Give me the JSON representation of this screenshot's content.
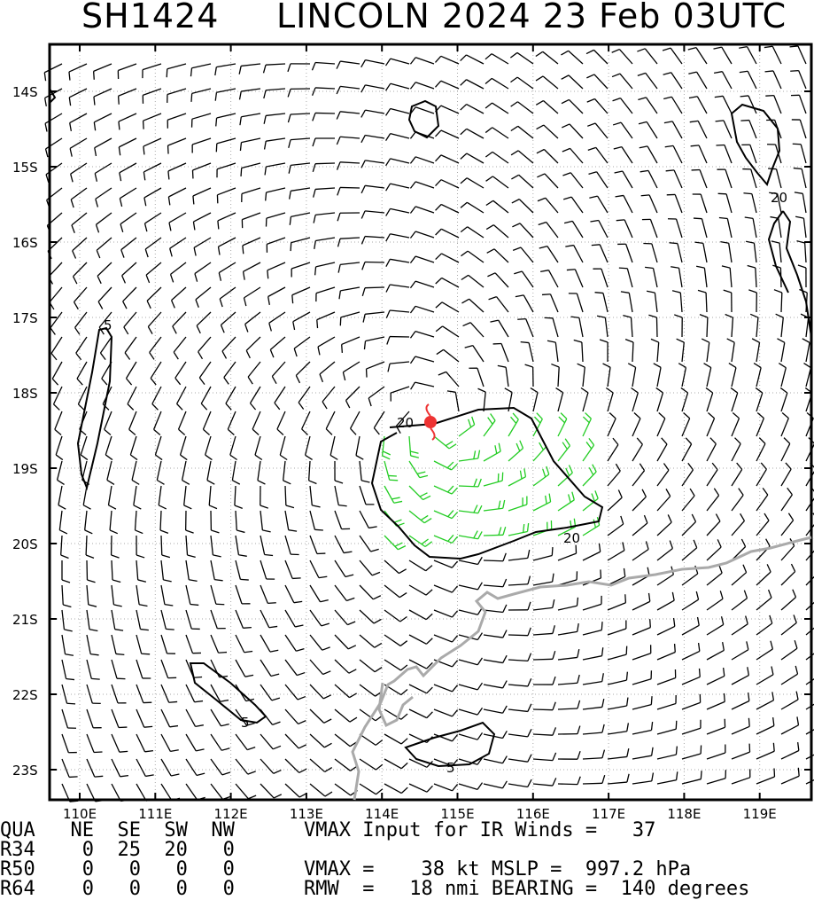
{
  "header": {
    "storm_id": "SH1424",
    "title": "LINCOLN 2024 23 Feb 03UTC"
  },
  "map": {
    "lat_labels": [
      "14S",
      "15S",
      "16S",
      "17S",
      "18S",
      "19S",
      "20S",
      "21S",
      "22S",
      "23S"
    ],
    "lon_labels": [
      "110E",
      "111E",
      "112E",
      "113E",
      "114E",
      "115E",
      "116E",
      "117E",
      "118E",
      "119E"
    ],
    "contour_labels": [
      "5",
      "5",
      "5",
      "20",
      "20",
      "20"
    ],
    "storm_center": {
      "lon": 114.75,
      "lat": -18.4
    },
    "colors": {
      "barb_light": "#000000",
      "barb_34kt": "#22cc22",
      "barb_50kt": "#e8a020",
      "coastline": "#aaaaaa",
      "contour": "#000000",
      "center_marker": "#ee3333"
    }
  },
  "footer": {
    "columns_row": "QUA   NE  SE  SW  NW",
    "row_r34": "R34    0  25  20   0",
    "row_r50": "R50    0   0   0   0",
    "row_r64": "R64    0   0   0   0",
    "vmax_input": "VMAX Input for IR Winds =   37",
    "vmax_mslp": "VMAX =    38 kt MSLP =  997.2 hPa",
    "rmw_bearing": "RMW  =   18 nmi BEARING =  140 degrees"
  }
}
